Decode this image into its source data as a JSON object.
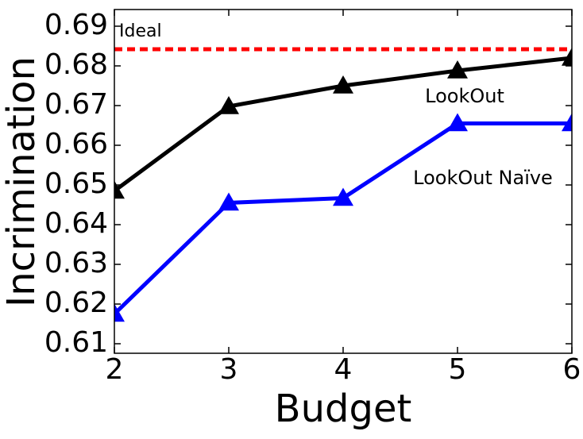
{
  "chart_data": {
    "type": "line",
    "x_label": "Budget",
    "y_label": "Incrimination",
    "x": [
      2,
      3,
      4,
      5,
      6
    ],
    "series": [
      {
        "name": "LookOut",
        "color": "#000000",
        "values": [
          0.6485,
          0.6698,
          0.675,
          0.6788,
          0.682
        ]
      },
      {
        "name": "LookOut Naïve",
        "color": "#0000ff",
        "values": [
          0.6175,
          0.6455,
          0.6467,
          0.6655,
          0.6655
        ]
      }
    ],
    "reference_line": {
      "label": "Ideal",
      "value": 0.6842,
      "color": "#ff0000"
    },
    "annotation_color": "#ff2200",
    "xlim": [
      2,
      6
    ],
    "xticks": [
      2,
      3,
      4,
      5,
      6
    ],
    "ylim": [
      0.6076,
      0.6942
    ],
    "yticks": [
      0.61,
      0.62,
      0.63,
      0.64,
      0.65,
      0.66,
      0.67,
      0.68,
      0.69
    ],
    "marker": "triangle",
    "grid": false
  }
}
